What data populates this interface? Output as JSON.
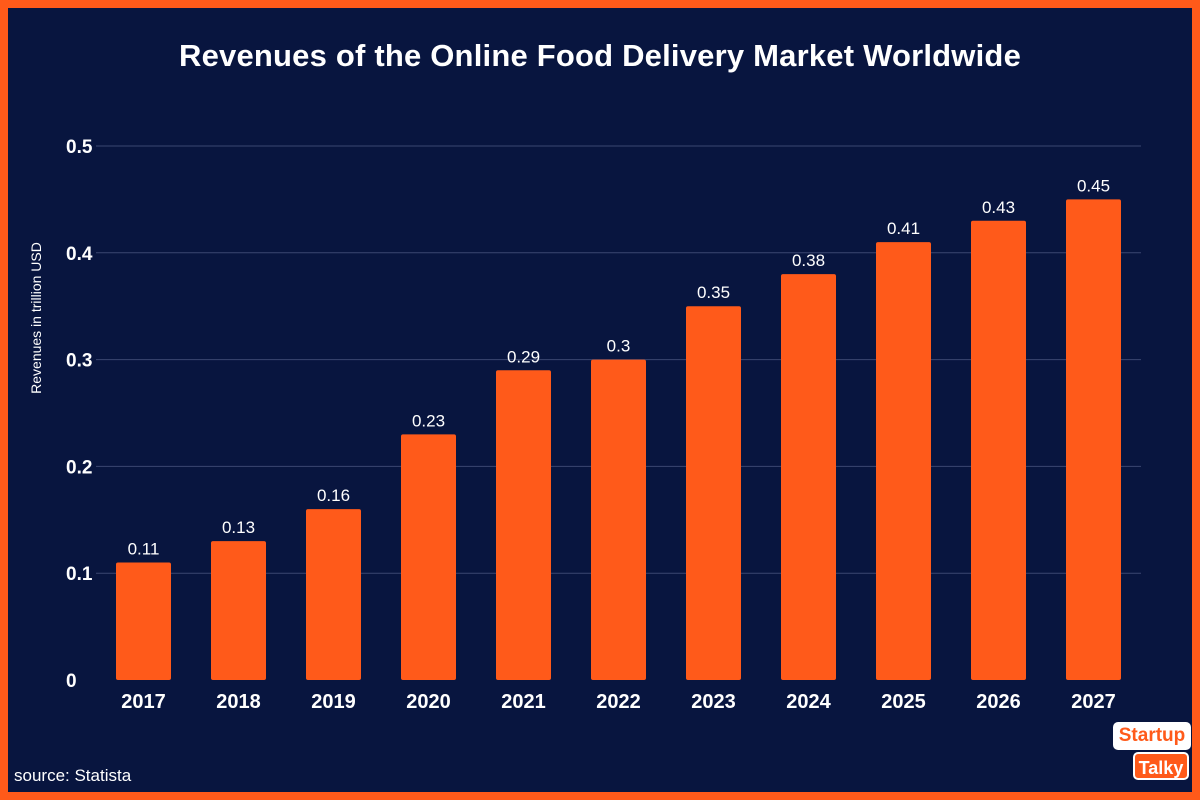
{
  "chart_data": {
    "type": "bar",
    "title": "Revenues of the Online Food Delivery Market Worldwide",
    "xlabel": "",
    "ylabel": "Revenues in trillion USD",
    "categories": [
      "2017",
      "2018",
      "2019",
      "2020",
      "2021",
      "2022",
      "2023",
      "2024",
      "2025",
      "2026",
      "2027"
    ],
    "values": [
      0.11,
      0.13,
      0.16,
      0.23,
      0.29,
      0.3,
      0.35,
      0.38,
      0.41,
      0.43,
      0.45
    ],
    "value_labels": [
      "0.11",
      "0.13",
      "0.16",
      "0.23",
      "0.29",
      "0.3",
      "0.35",
      "0.38",
      "0.41",
      "0.43",
      "0.45"
    ],
    "ylim": [
      0,
      0.5
    ],
    "yticks": [
      0,
      0.1,
      0.2,
      0.3,
      0.4,
      0.5
    ],
    "ytick_labels": [
      "0",
      "0.1",
      "0.2",
      "0.3",
      "0.4",
      "0.5"
    ],
    "grid": true,
    "legend": "none"
  },
  "colors": {
    "background": "#08153f",
    "frame": "#ff5a1a",
    "bar": "#ff5a1a",
    "grid": "#3a4670",
    "text": "#ffffff"
  },
  "footer": {
    "source": "source: Statista"
  },
  "logo": {
    "line1": "Startup",
    "line2": "Talky"
  }
}
